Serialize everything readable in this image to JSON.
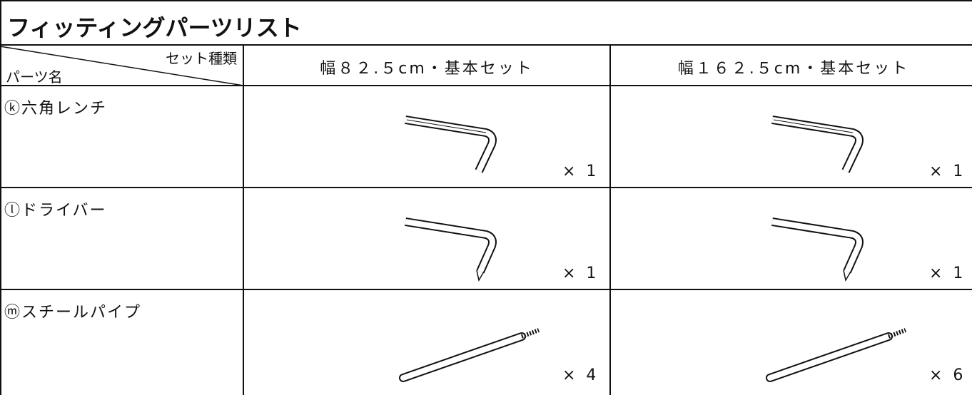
{
  "header": {
    "title": "フィッティングパーツリスト"
  },
  "table": {
    "corner_top": "セット種類",
    "corner_bottom": "パーツ名",
    "columns": [
      "幅８２.５cm・基本セット",
      "幅１６２.５cm・基本セット"
    ],
    "rows": [
      [
        "ⓚ六角レンチ",
        "× 1",
        "× 1"
      ],
      [
        "ⓛドライバー",
        "× 1",
        "× 1"
      ],
      [
        "ⓜスチールパイプ",
        "× 4",
        "× 6"
      ]
    ]
  }
}
